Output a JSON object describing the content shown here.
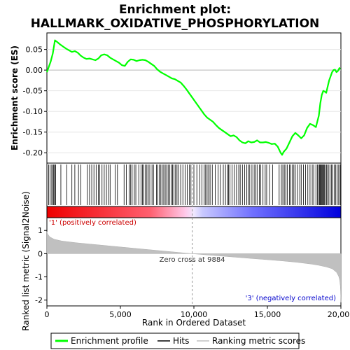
{
  "chart_data": {
    "type": "line",
    "title_line1": "Enrichment plot:",
    "title_line2": "HALLMARK_OXIDATIVE_PHOSPHORYLATION",
    "es_ylabel": "Enrichment score (ES)",
    "metric_ylabel": "Ranked list metric (Signal2Noise)",
    "xlabel": "Rank in Ordered Dataset",
    "xlim": [
      0,
      20000
    ],
    "x_ticks": [
      0,
      5000,
      10000,
      15000,
      20000
    ],
    "x_tick_labels": [
      "0",
      "5,000",
      "10,000",
      "15,000",
      "20,000"
    ],
    "es_ylim": [
      -0.225,
      0.09
    ],
    "es_y_ticks": [
      0.05,
      0.0,
      -0.05,
      -0.1,
      -0.15,
      -0.2
    ],
    "es_y_tick_labels": [
      "0.05",
      "0.00",
      "-0.05",
      "-0.10",
      "-0.15",
      "-0.20"
    ],
    "metric_ylim": [
      -2.25,
      1.55
    ],
    "metric_y_ticks": [
      1,
      0,
      -1,
      -2
    ],
    "metric_y_tick_labels": [
      "1",
      "0",
      "-1",
      "-2"
    ],
    "zero_cross": 9884,
    "zero_cross_label": "Zero cross at 9884",
    "pos_label": "'1' (positively correlated)",
    "neg_label": "'3' (negatively correlated)",
    "legend": [
      {
        "label": "Enrichment profile",
        "color": "#00ff00"
      },
      {
        "label": "Hits",
        "color": "#000000"
      },
      {
        "label": "Ranking metric scores",
        "color": "#c0c0c0"
      }
    ],
    "colors": {
      "profile": "#00ff00",
      "metric": "#c0c0c0",
      "pos": "#ff0000",
      "neg": "#0000ff"
    },
    "enrichment_profile": {
      "x": [
        0,
        100,
        250,
        400,
        550,
        700,
        900,
        1100,
        1300,
        1500,
        1700,
        1900,
        2100,
        2300,
        2500,
        2700,
        2900,
        3100,
        3300,
        3500,
        3700,
        3900,
        4100,
        4300,
        4500,
        4700,
        4900,
        5100,
        5300,
        5500,
        5700,
        5900,
        6100,
        6300,
        6500,
        6700,
        6900,
        7100,
        7300,
        7500,
        7700,
        7900,
        8100,
        8300,
        8500,
        8700,
        8900,
        9100,
        9300,
        9500,
        9700,
        9900,
        10100,
        10300,
        10500,
        10700,
        10900,
        11100,
        11300,
        11500,
        11700,
        11900,
        12100,
        12300,
        12500,
        12700,
        12900,
        13100,
        13300,
        13500,
        13700,
        13900,
        14100,
        14300,
        14500,
        14700,
        14900,
        15100,
        15300,
        15500,
        15700,
        15900,
        16000,
        16100,
        16300,
        16500,
        16700,
        16900,
        17100,
        17300,
        17500,
        17700,
        17900,
        18100,
        18300,
        18500,
        18600,
        18700,
        18800,
        18900,
        19000,
        19100,
        19200,
        19300,
        19400,
        19500,
        19600,
        19700,
        19800,
        19900,
        19950
      ],
      "y": [
        -0.005,
        0.005,
        0.02,
        0.04,
        0.072,
        0.068,
        0.062,
        0.057,
        0.052,
        0.048,
        0.044,
        0.046,
        0.042,
        0.035,
        0.03,
        0.027,
        0.028,
        0.026,
        0.024,
        0.028,
        0.036,
        0.038,
        0.036,
        0.03,
        0.026,
        0.022,
        0.018,
        0.012,
        0.01,
        0.02,
        0.026,
        0.025,
        0.022,
        0.024,
        0.025,
        0.024,
        0.02,
        0.015,
        0.01,
        0.002,
        -0.004,
        -0.008,
        -0.012,
        -0.016,
        -0.02,
        -0.022,
        -0.026,
        -0.03,
        -0.038,
        -0.047,
        -0.057,
        -0.067,
        -0.077,
        -0.087,
        -0.097,
        -0.107,
        -0.115,
        -0.12,
        -0.125,
        -0.133,
        -0.14,
        -0.145,
        -0.15,
        -0.155,
        -0.16,
        -0.158,
        -0.162,
        -0.17,
        -0.175,
        -0.177,
        -0.172,
        -0.175,
        -0.174,
        -0.17,
        -0.175,
        -0.175,
        -0.174,
        -0.176,
        -0.179,
        -0.178,
        -0.185,
        -0.2,
        -0.205,
        -0.198,
        -0.19,
        -0.175,
        -0.16,
        -0.152,
        -0.158,
        -0.165,
        -0.158,
        -0.14,
        -0.13,
        -0.133,
        -0.138,
        -0.11,
        -0.08,
        -0.06,
        -0.05,
        -0.052,
        -0.055,
        -0.04,
        -0.025,
        -0.015,
        -0.005,
        0.0,
        0.001,
        -0.005,
        -0.002,
        0.005,
        0.002
      ]
    },
    "metric_curve": {
      "x": [
        0,
        50,
        200,
        500,
        1000,
        2000,
        3000,
        4000,
        5000,
        6000,
        7000,
        8000,
        9000,
        9884,
        11000,
        12000,
        13000,
        14000,
        15000,
        16000,
        17000,
        18000,
        18500,
        19000,
        19400,
        19700,
        19850,
        19920,
        19960,
        19990,
        20000
      ],
      "y": [
        0.95,
        0.85,
        0.72,
        0.62,
        0.55,
        0.47,
        0.41,
        0.35,
        0.29,
        0.23,
        0.17,
        0.11,
        0.05,
        0.0,
        -0.06,
        -0.11,
        -0.16,
        -0.21,
        -0.26,
        -0.31,
        -0.37,
        -0.45,
        -0.5,
        -0.57,
        -0.65,
        -0.8,
        -0.98,
        -1.15,
        -1.4,
        -1.85,
        -2.1
      ]
    },
    "hits": [
      120,
      210,
      330,
      420,
      470,
      530,
      600,
      950,
      1350,
      1700,
      1900,
      2150,
      2300,
      2750,
      2900,
      3050,
      3200,
      3350,
      3500,
      3600,
      3750,
      3900,
      4050,
      4200,
      4300,
      4650,
      4800,
      5250,
      5400,
      5600,
      5700,
      5800,
      5950,
      6050,
      6250,
      6400,
      6500,
      6600,
      6700,
      6800,
      6900,
      7000,
      7150,
      7250,
      7450,
      7550,
      7650,
      7750,
      7850,
      7950,
      8050,
      8150,
      8250,
      8350,
      8450,
      8550,
      8650,
      8750,
      8850,
      8950,
      9100,
      9250,
      9400,
      9550,
      9700,
      9800,
      10000,
      10200,
      10400,
      10550,
      10700,
      10800,
      10900,
      11000,
      11100,
      11250,
      11450,
      11650,
      11800,
      12000,
      12150,
      12300,
      12350,
      12450,
      12600,
      12750,
      12900,
      13050,
      13150,
      13300,
      13450,
      13600,
      13700,
      13800,
      13950,
      14100,
      14200,
      14300,
      14450,
      14550,
      14700,
      14850,
      14950,
      15150,
      15350,
      15800,
      15950,
      16050,
      16150,
      16250,
      16350,
      16500,
      16600,
      16700,
      16800,
      16900,
      17050,
      17200,
      17300,
      17450,
      17600,
      17750,
      17900,
      18050,
      18150,
      18300,
      18400,
      18500,
      18550,
      18600,
      18650,
      18700,
      18750,
      18800,
      18850,
      18900,
      19000,
      19050,
      19150,
      19250,
      19350,
      19450,
      19550,
      19650,
      19750,
      19850,
      19950
    ]
  }
}
